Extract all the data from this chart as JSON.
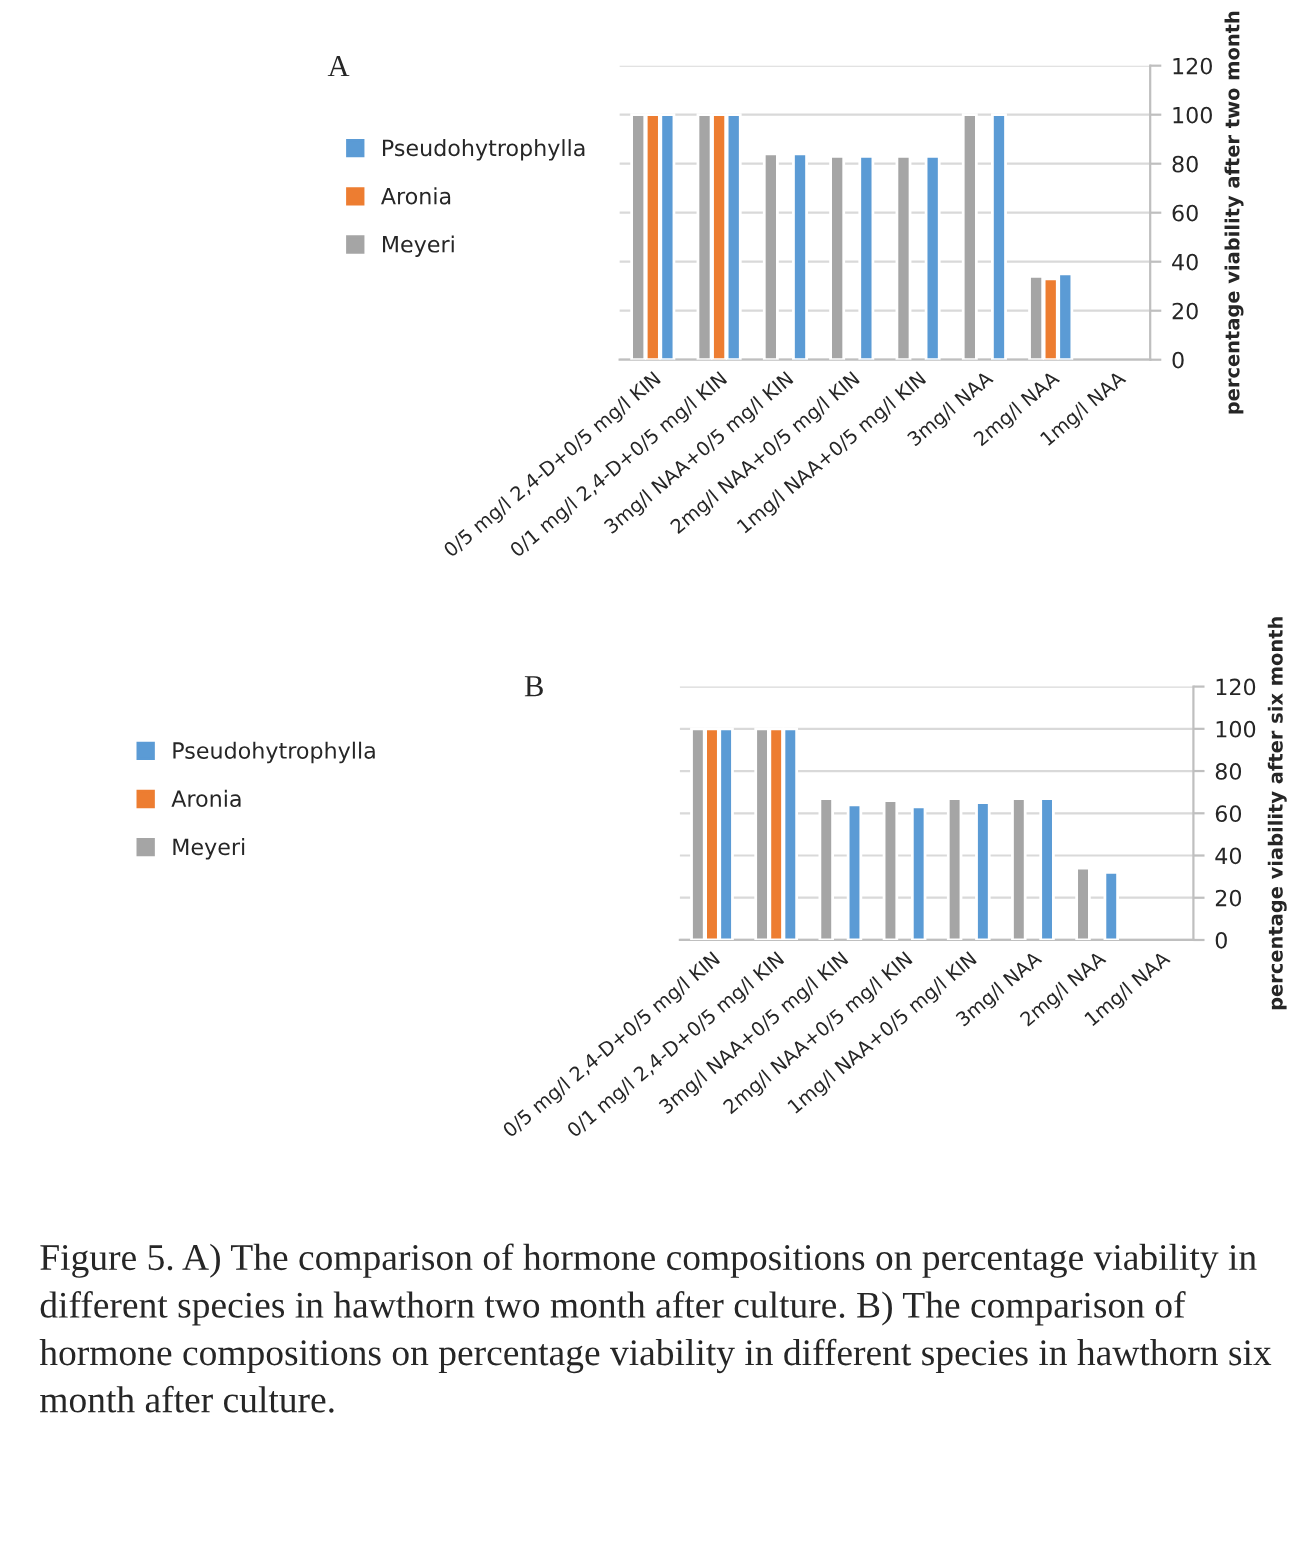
{
  "chart_data": [
    {
      "type": "bar",
      "title": "A",
      "ylabel": "percentage viability after two month",
      "categories": [
        "0/5 mg/l 2,4-D+0/5 mg/l KIN",
        "0/1 mg/l 2,4-D+0/5 mg/l KIN",
        "3mg/l NAA+0/5 mg/l KIN",
        "2mg/l NAA+0/5 mg/l KIN",
        "1mg/l NAA+0/5 mg/l KIN",
        "3mg/l NAA",
        "2mg/l NAA",
        "1mg/l NAA"
      ],
      "series": [
        {
          "name": "Meyeri",
          "color": "#a5a5a5",
          "values": [
            100,
            100,
            84,
            83,
            83,
            100,
            34,
            null
          ]
        },
        {
          "name": "Aronia",
          "color": "#ed7d31",
          "values": [
            100,
            100,
            null,
            null,
            null,
            null,
            33,
            null
          ]
        },
        {
          "name": "Pseudohytrophylla",
          "color": "#5b9bd5",
          "values": [
            100,
            100,
            84,
            83,
            83,
            100,
            35,
            null
          ]
        }
      ],
      "ylim": [
        0,
        120
      ],
      "yticks": [
        0,
        20,
        40,
        60,
        80,
        100,
        120
      ],
      "grid": "y",
      "legend": "left"
    },
    {
      "type": "bar",
      "title": "B",
      "ylabel": "percentage viability after six month",
      "categories": [
        "0/5 mg/l 2,4-D+0/5 mg/l KIN",
        "0/1 mg/l 2,4-D+0/5 mg/l KIN",
        "3mg/l NAA+0/5 mg/l KIN",
        "2mg/l NAA+0/5 mg/l KIN",
        "1mg/l NAA+0/5 mg/l KIN",
        "3mg/l NAA",
        "2mg/l NAA",
        "1mg/l NAA"
      ],
      "series": [
        {
          "name": "Meyeri",
          "color": "#a5a5a5",
          "values": [
            100,
            100,
            67,
            66,
            67,
            67,
            34,
            null
          ]
        },
        {
          "name": "Aronia",
          "color": "#ed7d31",
          "values": [
            100,
            100,
            null,
            null,
            null,
            null,
            null,
            null
          ]
        },
        {
          "name": "Pseudohytrophylla",
          "color": "#5b9bd5",
          "values": [
            100,
            100,
            64,
            63,
            65,
            67,
            32,
            null
          ]
        }
      ],
      "ylim": [
        0,
        120
      ],
      "yticks": [
        0,
        20,
        40,
        60,
        80,
        100,
        120
      ],
      "grid": "y",
      "legend": "left",
      "annotations": [
        "Figure 5. A) The comparison of hormone compositions on percentage viability in different species in hawthorn two month after culture. B) The comparison of hormone compositions on percentage viability in different species in hawthorn six month after culture."
      ]
    }
  ]
}
